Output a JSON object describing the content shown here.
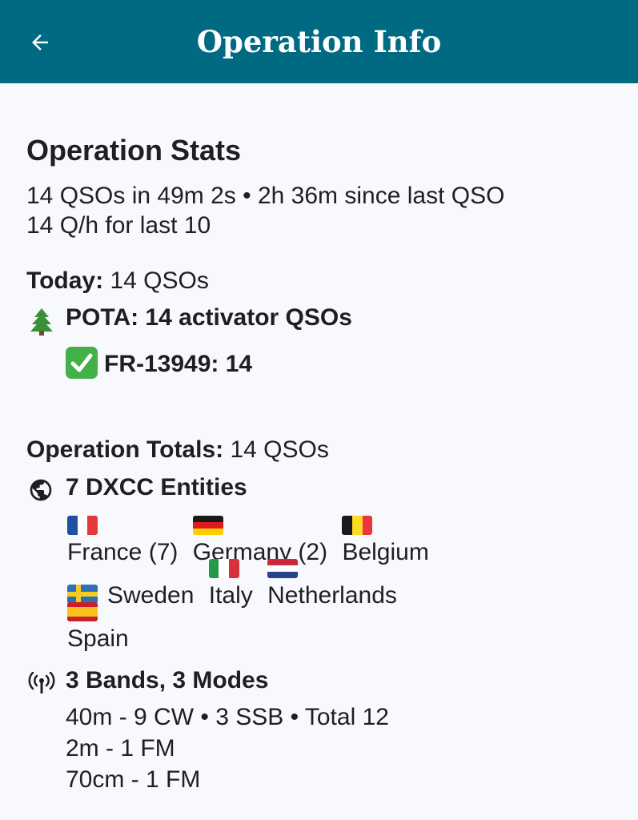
{
  "appbar": {
    "title": "Operation Info",
    "back_icon": "arrow-left-icon"
  },
  "stats": {
    "title": "Operation Stats",
    "line1": "14 QSOs in 49m 2s • 2h 36m since last QSO",
    "line2": "14 Q/h for last 10"
  },
  "today": {
    "label": "Today:",
    "value": "14 QSOs",
    "pota": {
      "icon": "evergreen-tree-icon",
      "label": "POTA: 14 activator QSOs",
      "park_icon": "check-mark-icon",
      "park": "FR-13949: 14"
    }
  },
  "totals": {
    "label": "Operation Totals:",
    "value": "14 QSOs",
    "dxcc": {
      "icon": "globe-icon",
      "label": "7 DXCC Entities",
      "countries": [
        {
          "name": "France (7)",
          "flag": "france-flag"
        },
        {
          "name": "Germany (2)",
          "flag": "germany-flag"
        },
        {
          "name": "Belgium",
          "flag": "belgium-flag"
        },
        {
          "name": "Sweden",
          "flag": "sweden-flag"
        },
        {
          "name": "Italy",
          "flag": "italy-flag"
        },
        {
          "name": "Netherlands",
          "flag": "netherlands-flag"
        },
        {
          "name": "Spain",
          "flag": "spain-flag"
        }
      ]
    },
    "bands": {
      "icon": "antenna-icon",
      "label": "3 Bands, 3 Modes",
      "rows": [
        "40m -  9 CW • 3 SSB • Total 12",
        "2m -  1 FM",
        "70cm -  1 FM"
      ]
    }
  },
  "colors": {
    "appbar": "#006a83",
    "background": "#f8f9fc",
    "text": "#1e1f23"
  }
}
